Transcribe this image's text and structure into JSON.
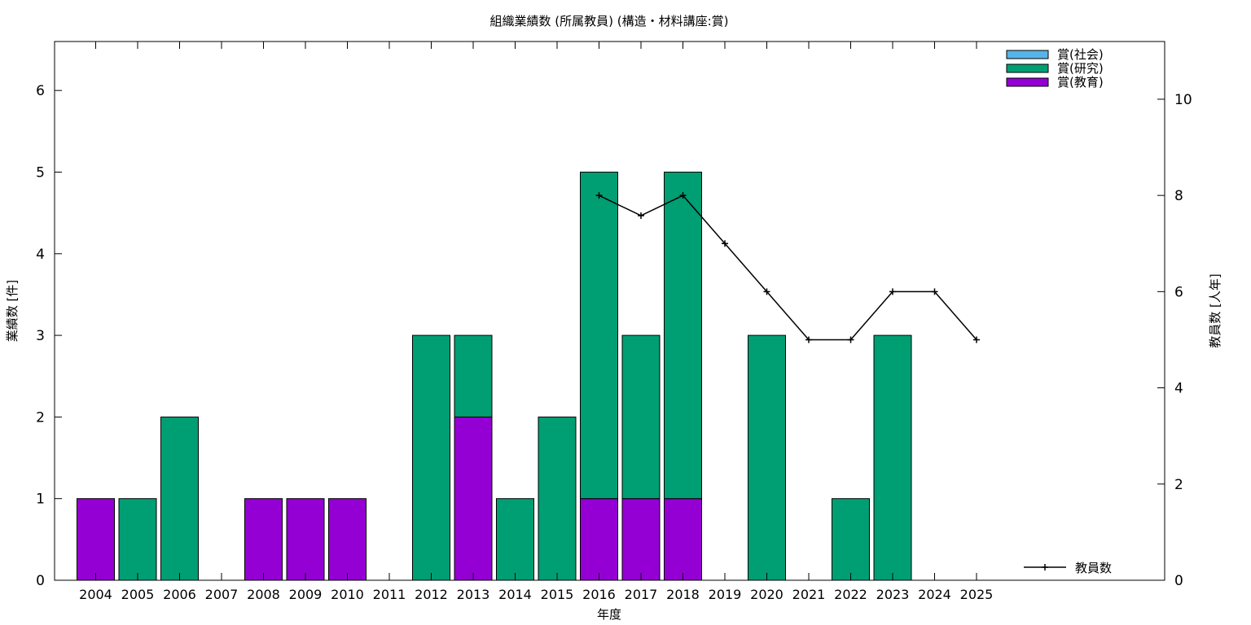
{
  "chart_data": {
    "type": "bar",
    "title": "組織業績数 (所属教員) (構造・材料講座:賞)",
    "xlabel": "年度",
    "ylabel": "業績数 [件]",
    "y2label": "教員数 [人年]",
    "categories": [
      "2004",
      "2005",
      "2006",
      "2007",
      "2008",
      "2009",
      "2010",
      "2011",
      "2012",
      "2013",
      "2014",
      "2015",
      "2016",
      "2017",
      "2018",
      "2019",
      "2020",
      "2021",
      "2022",
      "2023",
      "2024",
      "2025"
    ],
    "ylim": [
      0,
      6.6
    ],
    "yticks": [
      0,
      1,
      2,
      3,
      4,
      5,
      6
    ],
    "y2lim": [
      0,
      11.2
    ],
    "y2ticks": [
      0,
      2,
      4,
      6,
      8,
      10
    ],
    "stacked": true,
    "legend_position": "top-right",
    "series": [
      {
        "name": "賞(教育)",
        "color": "#9400d3",
        "values": [
          1,
          0,
          0,
          0,
          1,
          1,
          1,
          0,
          0,
          2,
          0,
          0,
          1,
          1,
          1,
          0,
          0,
          0,
          0,
          0,
          0,
          0
        ]
      },
      {
        "name": "賞(研究)",
        "color": "#009e73",
        "values": [
          0,
          1,
          2,
          0,
          0,
          0,
          0,
          0,
          3,
          1,
          1,
          2,
          4,
          2,
          4,
          0,
          3,
          0,
          1,
          3,
          0,
          0
        ]
      },
      {
        "name": "賞(社会)",
        "color": "#56b4e9",
        "values": [
          0,
          0,
          0,
          0,
          0,
          0,
          0,
          0,
          0,
          0,
          0,
          0,
          0,
          0,
          0,
          0,
          0,
          0,
          0,
          0,
          0,
          0
        ]
      }
    ],
    "line_series": {
      "name": "教員数",
      "axis": "y2",
      "color": "#000000",
      "x": [
        "2016",
        "2017",
        "2018",
        "2019",
        "2020",
        "2021",
        "2022",
        "2023",
        "2024",
        "2025"
      ],
      "values": [
        8,
        7.58,
        8,
        7,
        6,
        5,
        5,
        6,
        6,
        5
      ]
    },
    "legend_order": [
      "賞(社会)",
      "賞(研究)",
      "賞(教育)"
    ]
  }
}
